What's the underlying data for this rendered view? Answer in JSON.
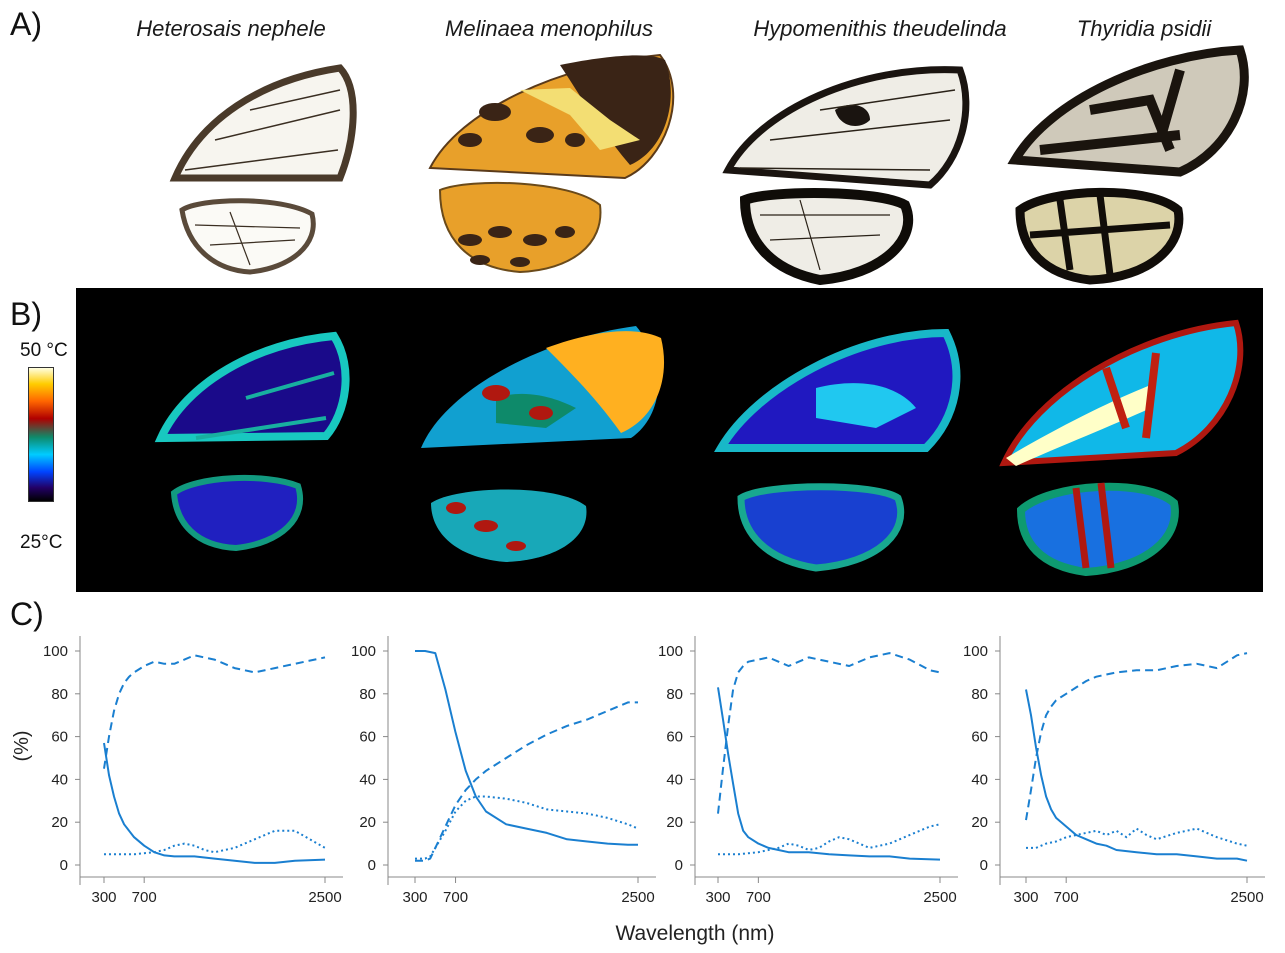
{
  "panel_labels": {
    "a": "A)",
    "b": "B)",
    "c": "C)"
  },
  "species": [
    "Heterosais nephele",
    "Melinaea menophilus",
    "Hypomenithis theudelinda",
    "Thyridia psidii"
  ],
  "thermal_scale": {
    "max_label": "50 °C",
    "min_label": "25°C"
  },
  "colors": {
    "series": "#1a7fd0",
    "wing_frame": "#2a2018",
    "thermal_bg": "#000000"
  },
  "chart_data": [
    {
      "type": "line",
      "xlabel": "Wavelength (nm)",
      "ylabel": "(%)",
      "xlim": [
        300,
        2500
      ],
      "ylim": [
        0,
        100
      ],
      "xticks": [
        "300",
        "700",
        "2500"
      ],
      "yticks": [
        "0",
        "20",
        "40",
        "60",
        "80",
        "100"
      ],
      "series": [
        {
          "style": "solid",
          "x": [
            300,
            350,
            400,
            450,
            500,
            550,
            600,
            700,
            800,
            900,
            1000,
            1100,
            1200,
            1400,
            1600,
            1800,
            2000,
            2200,
            2500
          ],
          "y": [
            57,
            42,
            32,
            24,
            19,
            16,
            13,
            9,
            6,
            4.5,
            4,
            4,
            4,
            3,
            2,
            1,
            1,
            2,
            2.5
          ]
        },
        {
          "style": "dashed",
          "x": [
            300,
            350,
            400,
            450,
            500,
            550,
            600,
            700,
            800,
            900,
            1000,
            1100,
            1200,
            1400,
            1600,
            1800,
            2000,
            2200,
            2500
          ],
          "y": [
            45,
            60,
            72,
            80,
            85,
            88,
            90,
            93,
            95,
            94,
            94,
            96,
            98,
            96,
            92,
            90,
            92,
            94,
            97
          ]
        },
        {
          "style": "dotted",
          "x": [
            300,
            400,
            500,
            600,
            700,
            800,
            900,
            1000,
            1100,
            1200,
            1300,
            1400,
            1600,
            1800,
            2000,
            2200,
            2350,
            2500
          ],
          "y": [
            5,
            5,
            5,
            5,
            5.5,
            6,
            7,
            9,
            10,
            9,
            7,
            6,
            8,
            12,
            16,
            16,
            12,
            8
          ]
        }
      ]
    },
    {
      "type": "line",
      "xlabel": "Wavelength (nm)",
      "ylabel": "",
      "xlim": [
        300,
        2500
      ],
      "ylim": [
        0,
        100
      ],
      "xticks": [
        "300",
        "700",
        "2500"
      ],
      "yticks": [
        "0",
        "20",
        "40",
        "60",
        "80",
        "100"
      ],
      "series": [
        {
          "style": "solid",
          "x": [
            300,
            400,
            500,
            600,
            700,
            800,
            900,
            1000,
            1200,
            1400,
            1600,
            1800,
            2000,
            2200,
            2400,
            2500
          ],
          "y": [
            100,
            100,
            99,
            82,
            62,
            44,
            32,
            25,
            19,
            17,
            15,
            12,
            11,
            10,
            9.5,
            9.5
          ]
        },
        {
          "style": "dashed",
          "x": [
            300,
            400,
            450,
            500,
            600,
            700,
            800,
            900,
            1000,
            1200,
            1400,
            1600,
            1800,
            2000,
            2200,
            2400,
            2500
          ],
          "y": [
            2,
            2,
            3,
            8,
            18,
            28,
            35,
            40,
            44,
            50,
            56,
            61,
            65,
            68,
            72,
            76,
            76
          ]
        },
        {
          "style": "dotted",
          "x": [
            300,
            400,
            450,
            500,
            600,
            700,
            800,
            900,
            1000,
            1200,
            1400,
            1600,
            1800,
            2000,
            2200,
            2400,
            2500
          ],
          "y": [
            3,
            3,
            4,
            8,
            16,
            25,
            30,
            32,
            32,
            31,
            29,
            26,
            25,
            24,
            22,
            19,
            17
          ]
        }
      ]
    },
    {
      "type": "line",
      "xlabel": "Wavelength (nm)",
      "ylabel": "",
      "xlim": [
        300,
        2500
      ],
      "ylim": [
        0,
        100
      ],
      "xticks": [
        "300",
        "700",
        "2500"
      ],
      "yticks": [
        "0",
        "20",
        "40",
        "60",
        "80",
        "100"
      ],
      "series": [
        {
          "style": "solid",
          "x": [
            300,
            350,
            400,
            450,
            500,
            550,
            600,
            700,
            800,
            900,
            1000,
            1200,
            1400,
            1600,
            1800,
            2000,
            2200,
            2500
          ],
          "y": [
            83,
            68,
            52,
            38,
            24,
            16,
            13,
            10,
            8,
            7,
            6,
            6,
            5,
            4.5,
            4,
            4,
            3,
            2.5
          ]
        },
        {
          "style": "dashed",
          "x": [
            300,
            350,
            400,
            450,
            500,
            550,
            600,
            700,
            800,
            900,
            1000,
            1200,
            1400,
            1600,
            1800,
            2000,
            2200,
            2400,
            2500
          ],
          "y": [
            24,
            45,
            65,
            82,
            90,
            93,
            95,
            96,
            97,
            95,
            93,
            97,
            95,
            93,
            97,
            99,
            96,
            91,
            90
          ]
        },
        {
          "style": "dotted",
          "x": [
            300,
            500,
            700,
            800,
            900,
            1000,
            1100,
            1200,
            1300,
            1400,
            1500,
            1600,
            1800,
            2000,
            2200,
            2400,
            2500
          ],
          "y": [
            5,
            5,
            6,
            7,
            8,
            10,
            9,
            7,
            8,
            11,
            13,
            12,
            8,
            10,
            14,
            18,
            19
          ]
        }
      ]
    },
    {
      "type": "line",
      "xlabel": "Wavelength (nm)",
      "ylabel": "",
      "xlim": [
        300,
        2500
      ],
      "ylim": [
        0,
        100
      ],
      "xticks": [
        "300",
        "700",
        "2500"
      ],
      "yticks": [
        "0",
        "20",
        "40",
        "60",
        "80",
        "100"
      ],
      "series": [
        {
          "style": "solid",
          "x": [
            300,
            350,
            400,
            450,
            500,
            550,
            600,
            700,
            800,
            900,
            1000,
            1100,
            1200,
            1400,
            1600,
            1800,
            2000,
            2200,
            2400,
            2500
          ],
          "y": [
            82,
            70,
            55,
            42,
            32,
            26,
            22,
            18,
            14,
            12,
            10,
            9,
            7,
            6,
            5,
            5,
            4,
            3,
            3,
            2
          ]
        },
        {
          "style": "dashed",
          "x": [
            300,
            350,
            400,
            450,
            500,
            550,
            600,
            700,
            800,
            900,
            1000,
            1100,
            1200,
            1400,
            1600,
            1800,
            2000,
            2200,
            2400,
            2500
          ],
          "y": [
            21,
            35,
            50,
            62,
            70,
            74,
            77,
            80,
            83,
            86,
            88,
            89,
            90,
            91,
            91,
            93,
            94,
            92,
            98,
            99
          ]
        },
        {
          "style": "dotted",
          "x": [
            300,
            400,
            500,
            600,
            700,
            800,
            900,
            1000,
            1100,
            1200,
            1300,
            1400,
            1500,
            1600,
            1800,
            2000,
            2200,
            2400,
            2500
          ],
          "y": [
            8,
            8,
            10,
            11,
            13,
            14,
            15,
            16,
            14,
            16,
            13,
            17,
            14,
            12,
            15,
            17,
            13,
            10,
            9
          ]
        }
      ]
    }
  ]
}
